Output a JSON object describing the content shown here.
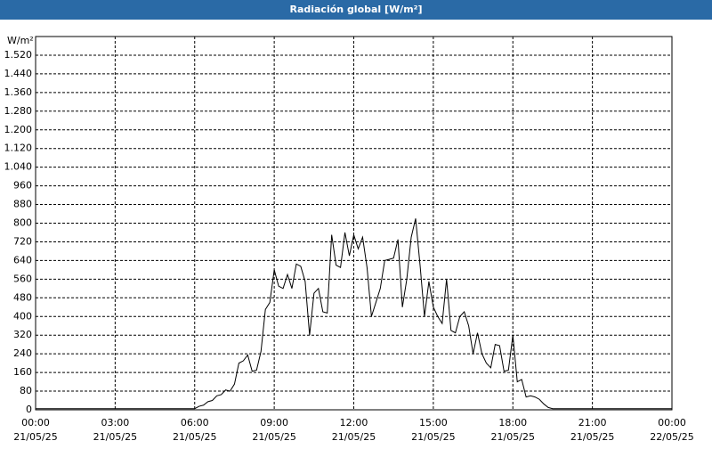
{
  "chart_data": {
    "type": "line",
    "title": "Radiación global [W/m²]",
    "y_unit": "W/m²",
    "x": [
      0,
      60,
      120,
      180,
      240,
      300,
      360,
      370,
      380,
      390,
      400,
      410,
      420,
      430,
      440,
      450,
      460,
      470,
      480,
      490,
      500,
      510,
      520,
      530,
      540,
      550,
      560,
      570,
      580,
      590,
      600,
      610,
      620,
      630,
      640,
      650,
      660,
      670,
      680,
      690,
      700,
      710,
      720,
      730,
      740,
      750,
      760,
      770,
      780,
      790,
      800,
      810,
      820,
      830,
      840,
      850,
      860,
      870,
      880,
      890,
      900,
      910,
      920,
      930,
      940,
      950,
      960,
      970,
      980,
      990,
      1000,
      1010,
      1020,
      1030,
      1040,
      1050,
      1060,
      1070,
      1080,
      1090,
      1100,
      1110,
      1120,
      1130,
      1140,
      1150,
      1160,
      1170,
      1180,
      1200,
      1260,
      1320,
      1380,
      1440
    ],
    "values": [
      5,
      5,
      5,
      5,
      5,
      5,
      5,
      15,
      20,
      35,
      40,
      60,
      65,
      85,
      80,
      110,
      200,
      210,
      235,
      165,
      170,
      250,
      430,
      460,
      600,
      530,
      520,
      580,
      520,
      625,
      615,
      550,
      320,
      500,
      520,
      420,
      415,
      750,
      620,
      610,
      760,
      660,
      750,
      690,
      740,
      610,
      400,
      460,
      520,
      640,
      645,
      650,
      730,
      440,
      560,
      740,
      820,
      620,
      400,
      550,
      440,
      400,
      370,
      560,
      340,
      330,
      400,
      420,
      360,
      240,
      330,
      240,
      200,
      180,
      280,
      275,
      165,
      170,
      320,
      120,
      130,
      55,
      60,
      55,
      45,
      25,
      10,
      5,
      5,
      5,
      5,
      5,
      5,
      5
    ],
    "color": "#000000",
    "xlim": [
      0,
      1440
    ],
    "xticks": [
      {
        "value": 0,
        "label": "00:00",
        "date": "21/05/25"
      },
      {
        "value": 180,
        "label": "03:00",
        "date": "21/05/25"
      },
      {
        "value": 360,
        "label": "06:00",
        "date": "21/05/25"
      },
      {
        "value": 540,
        "label": "09:00",
        "date": "21/05/25"
      },
      {
        "value": 720,
        "label": "12:00",
        "date": "21/05/25"
      },
      {
        "value": 900,
        "label": "15:00",
        "date": "21/05/25"
      },
      {
        "value": 1080,
        "label": "18:00",
        "date": "21/05/25"
      },
      {
        "value": 1260,
        "label": "21:00",
        "date": "21/05/25"
      },
      {
        "value": 1440,
        "label": "00:00",
        "date": "22/05/25"
      }
    ],
    "ylim": [
      0,
      1600
    ],
    "yticks": [
      0,
      80,
      160,
      240,
      320,
      400,
      480,
      560,
      640,
      720,
      800,
      880,
      960,
      {
        "value": 1040,
        "label": "1.040"
      },
      {
        "value": 1120,
        "label": "1.120"
      },
      {
        "value": 1200,
        "label": "1.200"
      },
      {
        "value": 1280,
        "label": "1.280"
      },
      {
        "value": 1360,
        "label": "1.360"
      },
      {
        "value": 1440,
        "label": "1.440"
      },
      {
        "value": 1520,
        "label": "1.520"
      }
    ],
    "grid": true
  }
}
